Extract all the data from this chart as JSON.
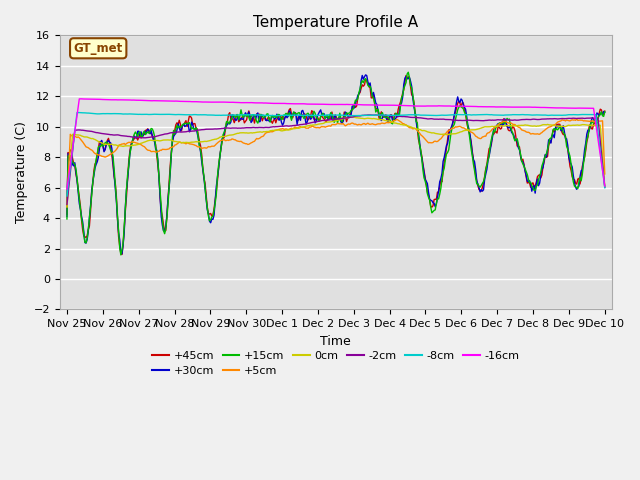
{
  "title": "Temperature Profile A",
  "xlabel": "Time",
  "ylabel": "Temperature (C)",
  "ylim": [
    -2,
    16
  ],
  "yticks": [
    -2,
    0,
    2,
    4,
    6,
    8,
    10,
    12,
    14,
    16
  ],
  "fig_facecolor": "#f0f0f0",
  "ax_facecolor": "#e0e0e0",
  "series": [
    {
      "label": "+45cm",
      "color": "#cc0000",
      "lw": 1.0
    },
    {
      "label": "+30cm",
      "color": "#0000cc",
      "lw": 1.0
    },
    {
      "label": "+15cm",
      "color": "#00bb00",
      "lw": 1.0
    },
    {
      "label": "+5cm",
      "color": "#ff8800",
      "lw": 1.0
    },
    {
      "label": "0cm",
      "color": "#cccc00",
      "lw": 1.0
    },
    {
      "label": "-2cm",
      "color": "#880099",
      "lw": 1.0
    },
    {
      "label": "-8cm",
      "color": "#00cccc",
      "lw": 1.0
    },
    {
      "label": "-16cm",
      "color": "#ff00ff",
      "lw": 1.0
    }
  ],
  "legend_box": {
    "text": "GT_met",
    "facecolor": "#ffffcc",
    "edgecolor": "#884400",
    "textcolor": "#884400"
  },
  "x_tick_labels": [
    "Nov 25",
    "Nov 26",
    "Nov 27",
    "Nov 28",
    "Nov 29",
    "Nov 30",
    "Dec 1",
    "Dec 2",
    "Dec 3",
    "Dec 4",
    "Dec 5",
    "Dec 6",
    "Dec 7",
    "Dec 8",
    "Dec 9",
    "Dec 10"
  ],
  "n_points": 480
}
